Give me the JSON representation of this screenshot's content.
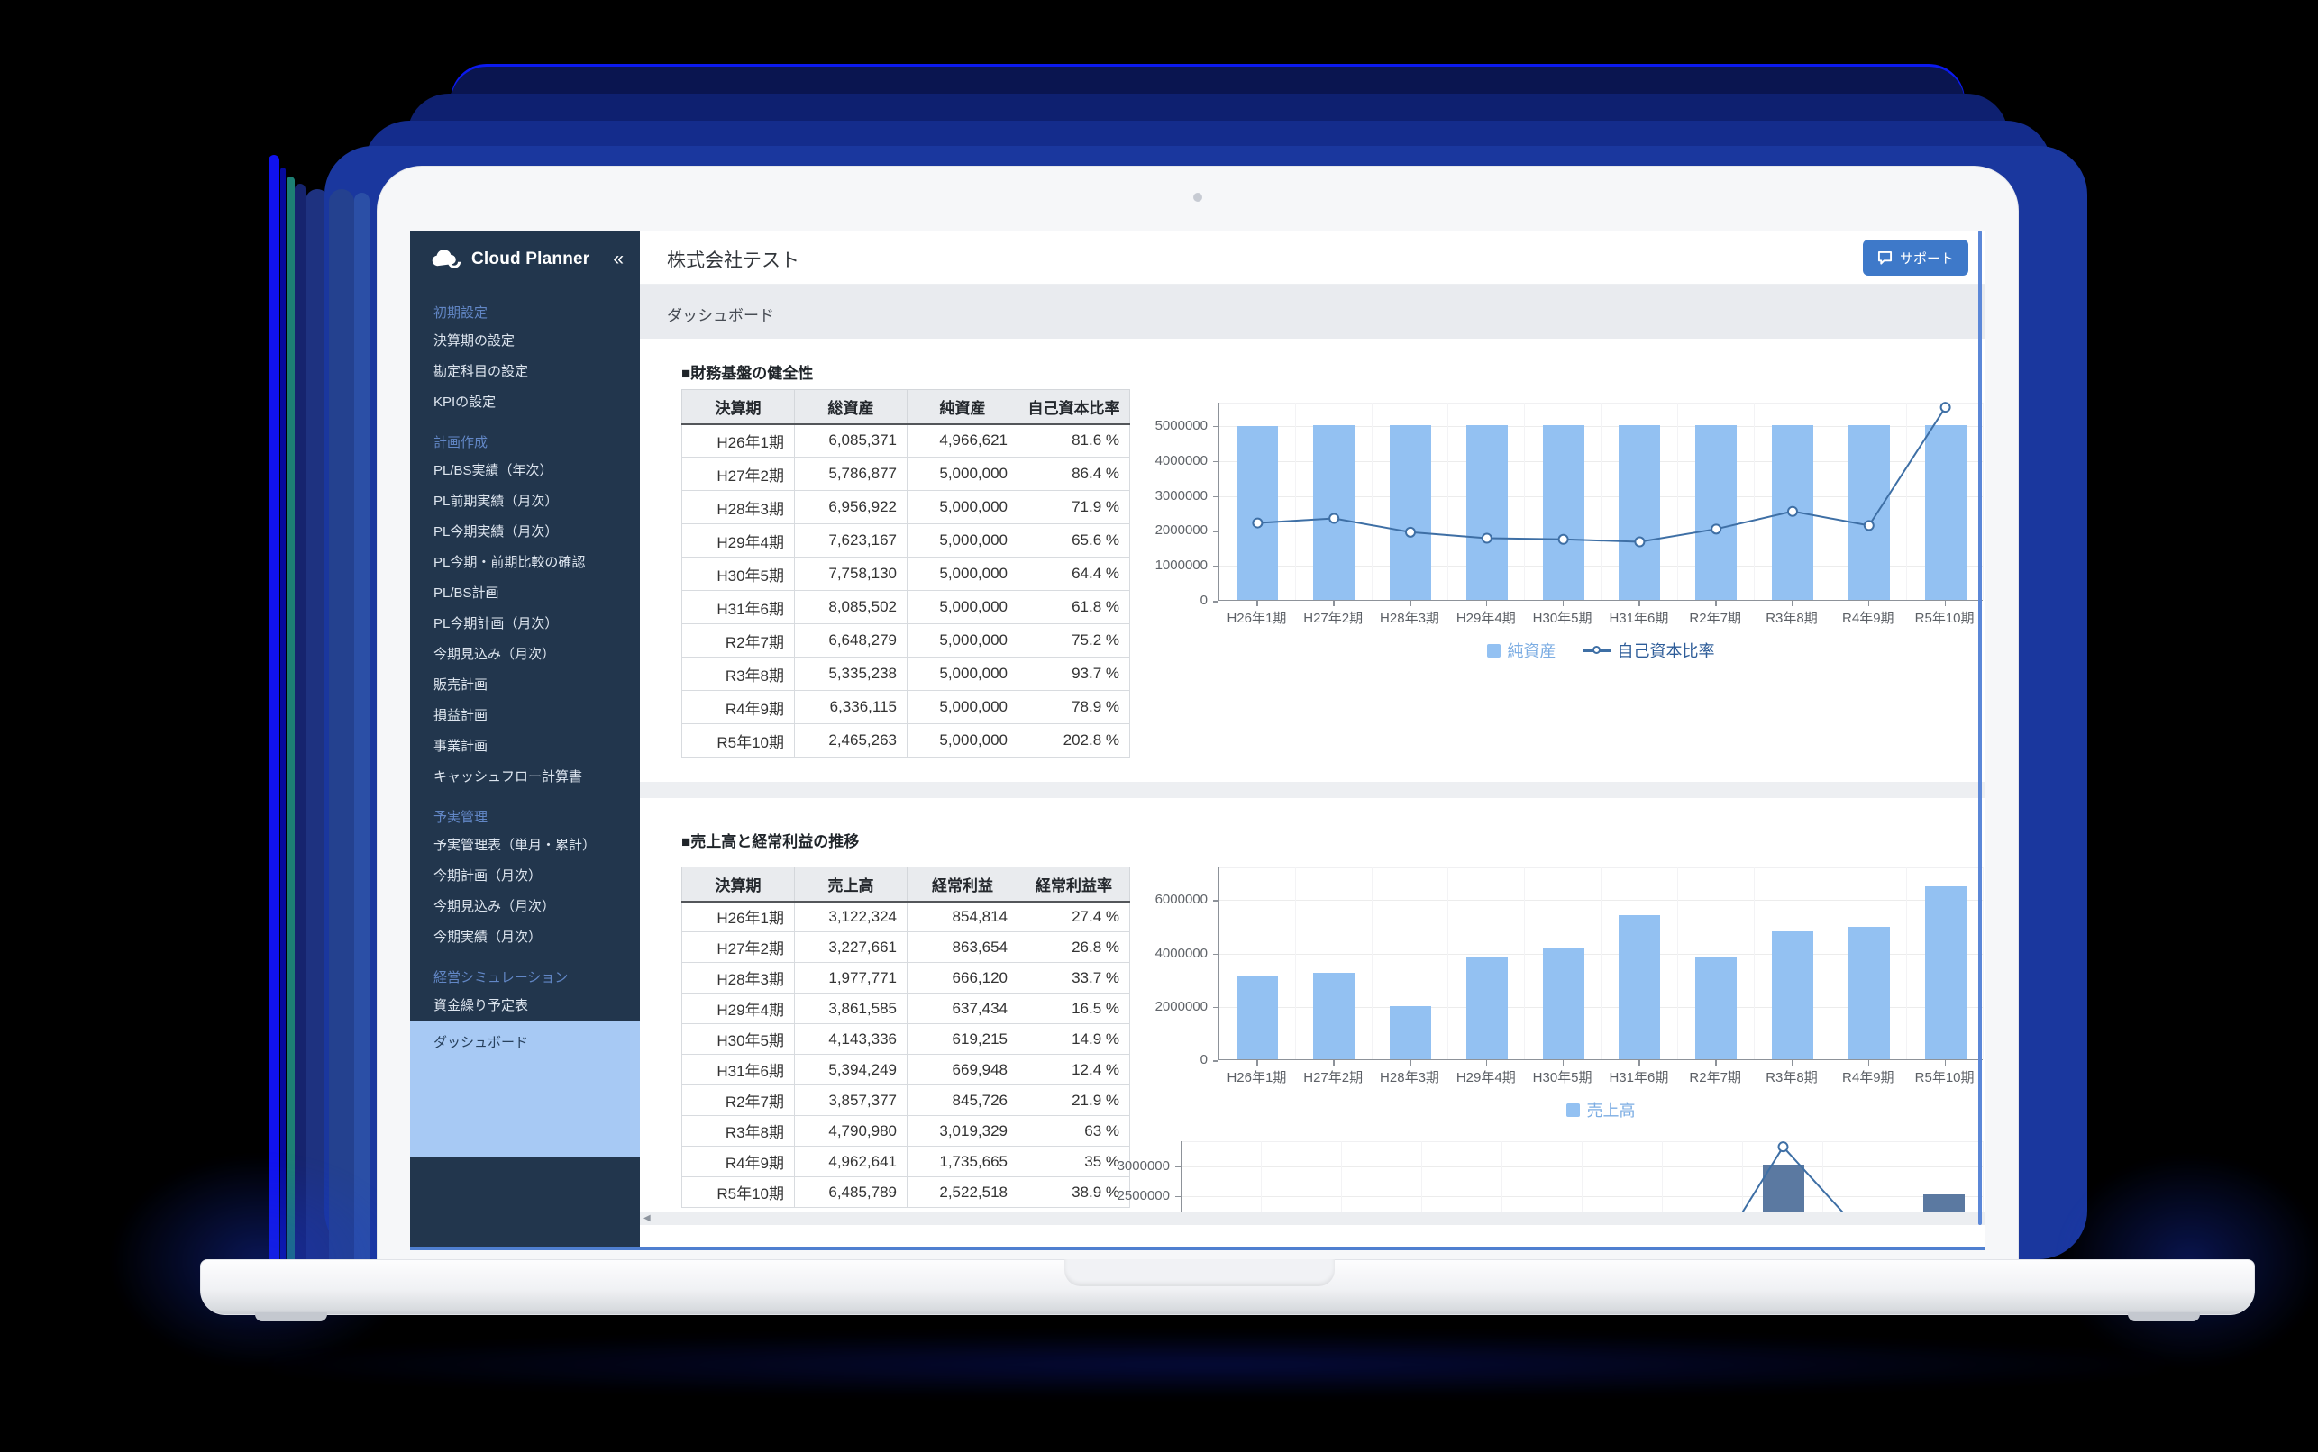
{
  "colors": {
    "accent_blue": "#3e79c9",
    "sidebar_bg": "#22364d",
    "sidebar_active_bg": "#a7c9f4",
    "bar_light": "#93c1f2",
    "bar_dark": "#5b79a1",
    "line_blue": "#3e6fa5",
    "scrollbar_blue": "#5b87d8"
  },
  "sidebar": {
    "logo_text": "Cloud Planner",
    "collapse_icon": "«",
    "groups": [
      {
        "label": "初期設定",
        "items": [
          "決算期の設定",
          "勘定科目の設定",
          "KPIの設定"
        ]
      },
      {
        "label": "計画作成",
        "items": [
          "PL/BS実績（年次）",
          "PL前期実績（月次）",
          "PL今期実績（月次）",
          "PL今期・前期比較の確認",
          "PL/BS計画",
          "PL今期計画（月次）",
          "今期見込み（月次）",
          "販売計画",
          "損益計画",
          "事業計画",
          "キャッシュフロー計算書"
        ]
      },
      {
        "label": "予実管理",
        "items": [
          "予実管理表（単月・累計）",
          "今期計画（月次）",
          "今期見込み（月次）",
          "今期実績（月次）"
        ]
      },
      {
        "label": "経営シミュレーション",
        "items": [
          "資金繰り予定表",
          "ダッシュボード"
        ]
      }
    ],
    "active_item": "ダッシュボード"
  },
  "header": {
    "company": "株式会社テスト",
    "support_label": "サポート"
  },
  "breadcrumb": {
    "label": "ダッシュボード"
  },
  "footer": {
    "scroll_left_icon": "◀"
  },
  "section1": {
    "title": "■財務基盤の健全性",
    "table": {
      "headers": [
        "決算期",
        "総資産",
        "純資産",
        "自己資本比率"
      ],
      "rows": [
        [
          "H26年1期",
          "6,085,371",
          "4,966,621",
          "81.6 %"
        ],
        [
          "H27年2期",
          "5,786,877",
          "5,000,000",
          "86.4 %"
        ],
        [
          "H28年3期",
          "6,956,922",
          "5,000,000",
          "71.9 %"
        ],
        [
          "H29年4期",
          "7,623,167",
          "5,000,000",
          "65.6 %"
        ],
        [
          "H30年5期",
          "7,758,130",
          "5,000,000",
          "64.4 %"
        ],
        [
          "H31年6期",
          "8,085,502",
          "5,000,000",
          "61.8 %"
        ],
        [
          "R2年7期",
          "6,648,279",
          "5,000,000",
          "75.2 %"
        ],
        [
          "R3年8期",
          "5,335,238",
          "5,000,000",
          "93.7 %"
        ],
        [
          "R4年9期",
          "6,336,115",
          "5,000,000",
          "78.9 %"
        ],
        [
          "R5年10期",
          "2,465,263",
          "5,000,000",
          "202.8 %"
        ]
      ]
    }
  },
  "section2": {
    "title": "■売上高と経常利益の推移",
    "table": {
      "headers": [
        "決算期",
        "売上高",
        "経常利益",
        "経常利益率"
      ],
      "rows": [
        [
          "H26年1期",
          "3,122,324",
          "854,814",
          "27.4 %"
        ],
        [
          "H27年2期",
          "3,227,661",
          "863,654",
          "26.8 %"
        ],
        [
          "H28年3期",
          "1,977,771",
          "666,120",
          "33.7 %"
        ],
        [
          "H29年4期",
          "3,861,585",
          "637,434",
          "16.5 %"
        ],
        [
          "H30年5期",
          "4,143,336",
          "619,215",
          "14.9 %"
        ],
        [
          "H31年6期",
          "5,394,249",
          "669,948",
          "12.4 %"
        ],
        [
          "R2年7期",
          "3,857,377",
          "845,726",
          "21.9 %"
        ],
        [
          "R3年8期",
          "4,790,980",
          "3,019,329",
          "63 %"
        ],
        [
          "R4年9期",
          "4,962,641",
          "1,735,665",
          "35 %"
        ],
        [
          "R5年10期",
          "6,485,789",
          "2,522,518",
          "38.9 %"
        ]
      ]
    }
  },
  "chart_data": [
    {
      "id": "equity",
      "type": "bar+line",
      "categories": [
        "H26年1期",
        "H27年2期",
        "H28年3期",
        "H29年4期",
        "H30年5期",
        "H31年6期",
        "R2年7期",
        "R3年8期",
        "R4年9期",
        "R5年10期"
      ],
      "series": [
        {
          "name": "純資産",
          "type": "bar",
          "values": [
            4966621,
            5000000,
            5000000,
            5000000,
            5000000,
            5000000,
            5000000,
            5000000,
            5000000,
            5000000
          ]
        },
        {
          "name": "自己資本比率",
          "type": "line",
          "unit": "%",
          "values": [
            81.6,
            86.4,
            71.9,
            65.6,
            64.4,
            61.8,
            75.2,
            93.7,
            78.9,
            202.8
          ],
          "axis_value_per_percent": 27300
        }
      ],
      "y_ticks": [
        0,
        1000000,
        2000000,
        3000000,
        4000000,
        5000000
      ],
      "ylim": [
        0,
        5670000
      ],
      "grid": true,
      "legend_position": "bottom",
      "legend": [
        {
          "label": "純資産",
          "marker": "bar"
        },
        {
          "label": "自己資本比率",
          "marker": "line"
        }
      ]
    },
    {
      "id": "sales",
      "type": "bar",
      "categories": [
        "H26年1期",
        "H27年2期",
        "H28年3期",
        "H29年4期",
        "H30年5期",
        "H31年6期",
        "R2年7期",
        "R3年8期",
        "R4年9期",
        "R5年10期"
      ],
      "series": [
        {
          "name": "売上高",
          "type": "bar",
          "values": [
            3122324,
            3227661,
            1977771,
            3861585,
            4143336,
            5394249,
            3857377,
            4790980,
            4962641,
            6485789
          ]
        }
      ],
      "y_ticks": [
        0,
        2000000,
        4000000,
        6000000
      ],
      "ylim": [
        0,
        7230000
      ],
      "grid": true,
      "legend_position": "bottom",
      "legend": [
        {
          "label": "売上高",
          "marker": "bar"
        }
      ]
    },
    {
      "id": "profit",
      "type": "bar+line",
      "clipped": true,
      "categories": [
        "H26年1期",
        "H27年2期",
        "H28年3期",
        "H29年4期",
        "H30年5期",
        "H31年6期",
        "R2年7期",
        "R3年8期",
        "R4年9期",
        "R5年10期"
      ],
      "series": [
        {
          "name": "経常利益",
          "type": "bar",
          "values": [
            854814,
            863654,
            666120,
            637434,
            619215,
            669948,
            845726,
            3019329,
            1735665,
            2522518
          ]
        },
        {
          "name": "経常利益率",
          "type": "line",
          "unit": "%",
          "values": [
            27.4,
            26.8,
            33.7,
            16.5,
            14.9,
            12.4,
            21.9,
            63,
            35,
            38.9
          ],
          "axis_value_per_percent": 52800
        }
      ],
      "y_ticks": [
        2500000,
        3000000
      ],
      "ylim": [
        0,
        3420000
      ],
      "grid": true,
      "legend": []
    }
  ]
}
